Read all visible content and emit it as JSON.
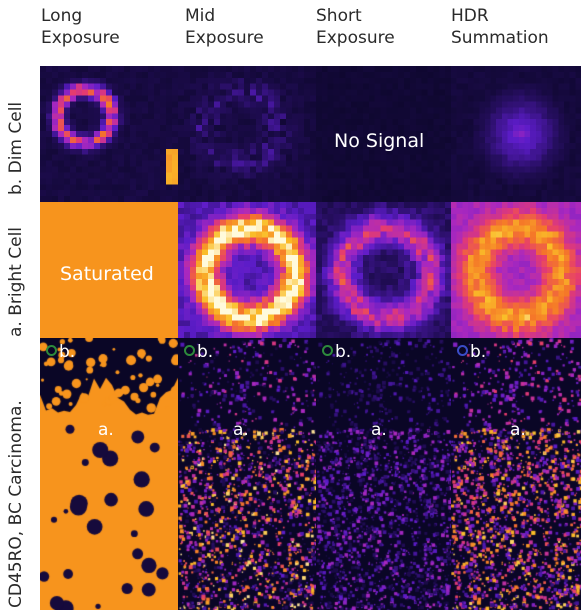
{
  "columns": [
    {
      "label": "Long\nExposure"
    },
    {
      "label": "Mid\nExposure"
    },
    {
      "label": "Short\nExposure"
    },
    {
      "label": "HDR\nSummation"
    }
  ],
  "rows": {
    "dim": "b. Dim Cell",
    "bright": "a. Bright Cell",
    "tissue": "CD45RO, BC Carcinoma."
  },
  "annotations": {
    "no_signal": "No Signal",
    "saturated": "Saturated",
    "marker_a": "a.",
    "marker_b": "b."
  },
  "colors": {
    "background": "#0a0626",
    "saturated": "#f7941d",
    "colormap": "fire / plasma-like (black-purple-red-orange-yellow-white)"
  }
}
